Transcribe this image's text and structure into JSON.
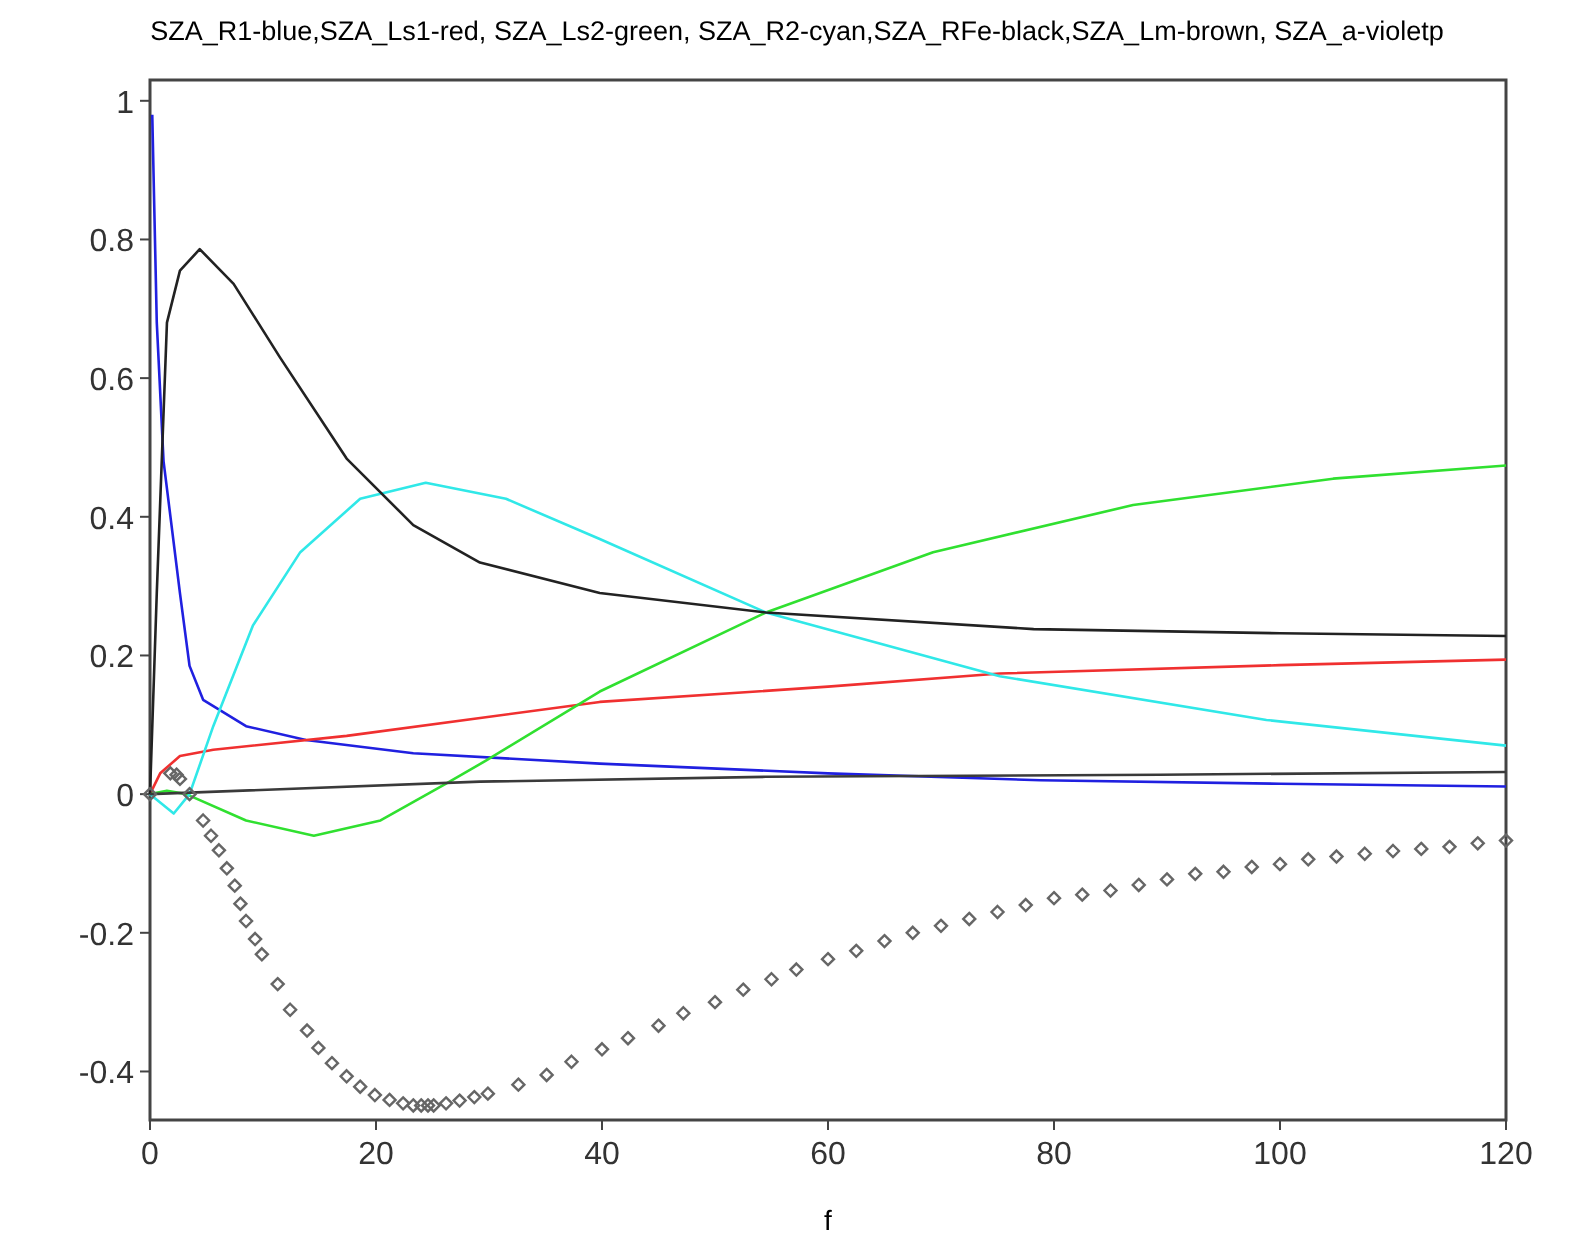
{
  "chart_data": {
    "type": "line",
    "title": "SZA_R1-blue,SZA_Ls1-red, SZA_Ls2-green, SZA_R2-cyan,SZA_RFe-black,SZA_Lm-brown, SZA_a-violetp",
    "xlabel": "f",
    "xlim": [
      0,
      120
    ],
    "ylim": [
      -0.47,
      1.03
    ],
    "xticks": [
      0,
      20,
      40,
      60,
      80,
      100,
      120
    ],
    "yticks": [
      -0.4,
      -0.2,
      0,
      0.2,
      0.4,
      0.6,
      0.8,
      1
    ],
    "series": [
      {
        "color": "#2020e0",
        "x": [
          0.2,
          0.6,
          1.2,
          2.65,
          3.5,
          4.7,
          8.5,
          13.8,
          23.3,
          39.8,
          60,
          78.8,
          100,
          120
        ],
        "values": [
          0.98,
          0.68,
          0.48,
          0.29,
          0.185,
          0.136,
          0.098,
          0.078,
          0.059,
          0.044,
          0.03,
          0.02,
          0.015,
          0.011
        ]
      },
      {
        "color": "#f03030",
        "x": [
          0,
          0.9,
          2.65,
          5.6,
          17.4,
          39.8,
          60,
          75.2,
          100,
          120
        ],
        "values": [
          0,
          0.03,
          0.055,
          0.064,
          0.084,
          0.133,
          0.155,
          0.174,
          0.186,
          0.194
        ]
      },
      {
        "color": "#30e030",
        "x": [
          0,
          1.5,
          3.2,
          8.5,
          14.5,
          20.4,
          26.2,
          29.8,
          39.8,
          54.5,
          69.3,
          87,
          104.7,
          120
        ],
        "values": [
          0,
          0.005,
          0,
          -0.038,
          -0.06,
          -0.038,
          0.015,
          0.049,
          0.148,
          0.262,
          0.349,
          0.417,
          0.455,
          0.474
        ]
      },
      {
        "color": "#30e8e8",
        "x": [
          0,
          2.1,
          3.5,
          5.6,
          9.1,
          13.3,
          18.6,
          24.4,
          31.5,
          39.8,
          54.5,
          75.2,
          98.8,
          120
        ],
        "values": [
          0,
          -0.028,
          0,
          0.098,
          0.243,
          0.349,
          0.426,
          0.449,
          0.426,
          0.368,
          0.262,
          0.17,
          0.107,
          0.07
        ]
      },
      {
        "color": "#222222",
        "x": [
          0,
          0.6,
          1.5,
          2.65,
          4.4,
          7.4,
          11.5,
          17.4,
          23.3,
          29.2,
          39.8,
          54.5,
          78.2,
          100,
          120
        ],
        "values": [
          0,
          0.29,
          0.68,
          0.755,
          0.786,
          0.736,
          0.63,
          0.484,
          0.388,
          0.334,
          0.29,
          0.262,
          0.238,
          0.232,
          0.228
        ]
      },
      {
        "color": "#3a3a3a",
        "x": [
          0,
          29.2,
          54.5,
          89.4,
          120
        ],
        "values": [
          0,
          0.018,
          0.025,
          0.028,
          0.032
        ]
      },
      {
        "type": "scatter",
        "marker": "diamond",
        "color": "#666666",
        "x": [
          0,
          1.8,
          2.35,
          2.65,
          3.5,
          4.7,
          5.4,
          6.1,
          6.8,
          7.5,
          8,
          8.5,
          9.3,
          9.9,
          11.3,
          12.4,
          13.9,
          14.9,
          16.1,
          17.4,
          18.6,
          19.9,
          21.2,
          22.4,
          23.3,
          24,
          24.6,
          25.1,
          26.2,
          27.4,
          28.7,
          29.9,
          32.6,
          35.1,
          37.3,
          40,
          42.3,
          45,
          47.2,
          50,
          52.5,
          55,
          57.2,
          60,
          62.5,
          65,
          67.5,
          70,
          72.5,
          75,
          77.5,
          80,
          82.5,
          85,
          87.5,
          90,
          92.5,
          95,
          97.5,
          100,
          102.5,
          105,
          107.5,
          110,
          112.5,
          115,
          117.5,
          120
        ],
        "values": [
          0,
          0.03,
          0.028,
          0.022,
          0,
          -0.038,
          -0.06,
          -0.081,
          -0.107,
          -0.132,
          -0.158,
          -0.183,
          -0.209,
          -0.231,
          -0.274,
          -0.311,
          -0.341,
          -0.366,
          -0.388,
          -0.407,
          -0.422,
          -0.434,
          -0.441,
          -0.446,
          -0.449,
          -0.449,
          -0.449,
          -0.449,
          -0.446,
          -0.442,
          -0.437,
          -0.432,
          -0.419,
          -0.405,
          -0.386,
          -0.368,
          -0.352,
          -0.334,
          -0.316,
          -0.3,
          -0.282,
          -0.267,
          -0.253,
          -0.238,
          -0.226,
          -0.212,
          -0.2,
          -0.19,
          -0.18,
          -0.17,
          -0.16,
          -0.15,
          -0.145,
          -0.139,
          -0.131,
          -0.123,
          -0.115,
          -0.112,
          -0.105,
          -0.101,
          -0.094,
          -0.09,
          -0.086,
          -0.082,
          -0.079,
          -0.076,
          -0.071,
          -0.067
        ]
      }
    ]
  }
}
